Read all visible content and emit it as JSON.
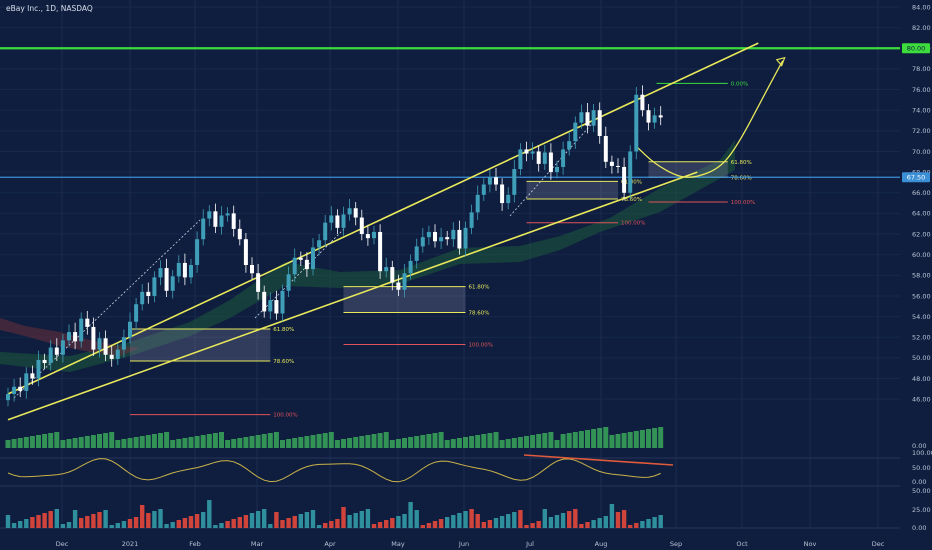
{
  "title": "eBay Inc., 1D, NASDAQ",
  "colors": {
    "background": "#0f1e3f",
    "up": "#3f9fb8",
    "down": "#ffffff",
    "channel": "#e8e85a",
    "level_80": "#3ddc3d",
    "level_6750": "#3b8fd6",
    "oscillator": "#c9b24a",
    "divergence": "#e05a3a",
    "volume_up": "#3aa85a",
    "hist_up": "#2f8f9c",
    "hist_down": "#d0443c"
  },
  "chart_data": {
    "type": "candlestick",
    "symbol": "eBay Inc., 1D, NASDAQ",
    "x_labels": [
      "Dec",
      "2021",
      "Feb",
      "Mar",
      "Apr",
      "May",
      "Jun",
      "Jul",
      "Aug",
      "Sep",
      "Oct",
      "Nov",
      "Dec"
    ],
    "y_ticks": [
      "84.00",
      "82.00",
      "80.00",
      "78.00",
      "76.00",
      "74.00",
      "72.00",
      "70.00",
      "68.00",
      "66.00",
      "64.00",
      "62.00",
      "60.00",
      "58.00",
      "56.00",
      "54.00",
      "52.00",
      "50.00",
      "48.00",
      "46.00"
    ],
    "ylim": [
      44.5,
      84.5
    ],
    "price_labels": [
      {
        "text": "80.00",
        "value": 80.0,
        "color": "#3ddc3d"
      },
      {
        "text": "67.50",
        "value": 67.5,
        "color": "#3b8fd6"
      }
    ],
    "channel_upper": [
      [
        0,
        46.5
      ],
      [
        123,
        80.5
      ]
    ],
    "channel_lower": [
      [
        0,
        44.0
      ],
      [
        113,
        68.0
      ]
    ],
    "fib_zones": [
      {
        "x0": 20,
        "x1": 43,
        "labels": [
          "61.80%",
          "78.60%",
          "100.00%"
        ],
        "values": [
          52.8,
          49.7,
          44.5
        ]
      },
      {
        "x0": 55,
        "x1": 75,
        "labels": [
          "61.80%",
          "78.60%",
          "100.00%"
        ],
        "values": [
          56.9,
          54.4,
          51.3
        ]
      },
      {
        "x0": 85,
        "x1": 100,
        "labels": [
          "61.80%",
          "78.60%",
          "100.00%"
        ],
        "values": [
          67.1,
          65.4,
          63.1
        ]
      },
      {
        "x0": 105,
        "x1": 118,
        "labels": [
          "0.00%",
          "61.80%",
          "78.60%",
          "100.00%"
        ],
        "values": [
          76.6,
          69.0,
          67.5,
          65.1
        ]
      }
    ],
    "projection": {
      "x": [
        103,
        106,
        110,
        113,
        117,
        120,
        124,
        127
      ],
      "y": [
        70.5,
        68.8,
        67.5,
        67.5,
        68.5,
        71.0,
        75.5,
        78.8
      ]
    },
    "series": [
      {
        "name": "Price",
        "close": [
          46.5,
          47.2,
          46.8,
          48.5,
          48.0,
          49.8,
          49.5,
          51.0,
          50.3,
          51.7,
          52.5,
          51.6,
          53.8,
          53.0,
          50.8,
          51.9,
          50.3,
          49.9,
          50.8,
          52.0,
          53.5,
          55.2,
          56.4,
          56.0,
          57.8,
          58.7,
          56.5,
          57.9,
          59.2,
          57.8,
          59.0,
          61.5,
          63.5,
          64.2,
          62.7,
          63.8,
          64.0,
          62.5,
          61.5,
          59.0,
          58.2,
          56.4,
          54.5,
          55.6,
          54.3,
          56.5,
          58.1,
          59.7,
          59.5,
          58.6,
          60.7,
          61.4,
          63.1,
          63.8,
          62.6,
          63.9,
          64.5,
          63.6,
          62.0,
          61.6,
          62.2,
          58.4,
          58.8,
          57.3,
          56.6,
          58.2,
          59.4,
          60.8,
          61.7,
          62.2,
          61.3,
          61.7,
          61.5,
          62.4,
          60.6,
          62.6,
          64.1,
          65.8,
          66.8,
          67.5,
          66.8,
          65.0,
          65.8,
          68.3,
          70.2,
          69.8,
          70.0,
          68.8,
          69.9,
          68.0,
          68.5,
          70.2,
          71.0,
          72.8,
          73.8,
          72.5,
          74.0,
          71.5,
          69.0,
          68.6,
          68.5,
          66.0,
          70.0,
          75.5,
          74.0,
          72.8,
          73.5,
          73.3
        ]
      },
      {
        "name": "Volume"
      },
      {
        "name": "Oscillator"
      },
      {
        "name": "Histogram"
      }
    ],
    "volume_axis": [
      "0.00"
    ],
    "osc_axis": [
      "100.00",
      "50.00",
      "0.00"
    ],
    "hist_axis": [
      "50.00",
      "25.00",
      "0.00"
    ]
  }
}
